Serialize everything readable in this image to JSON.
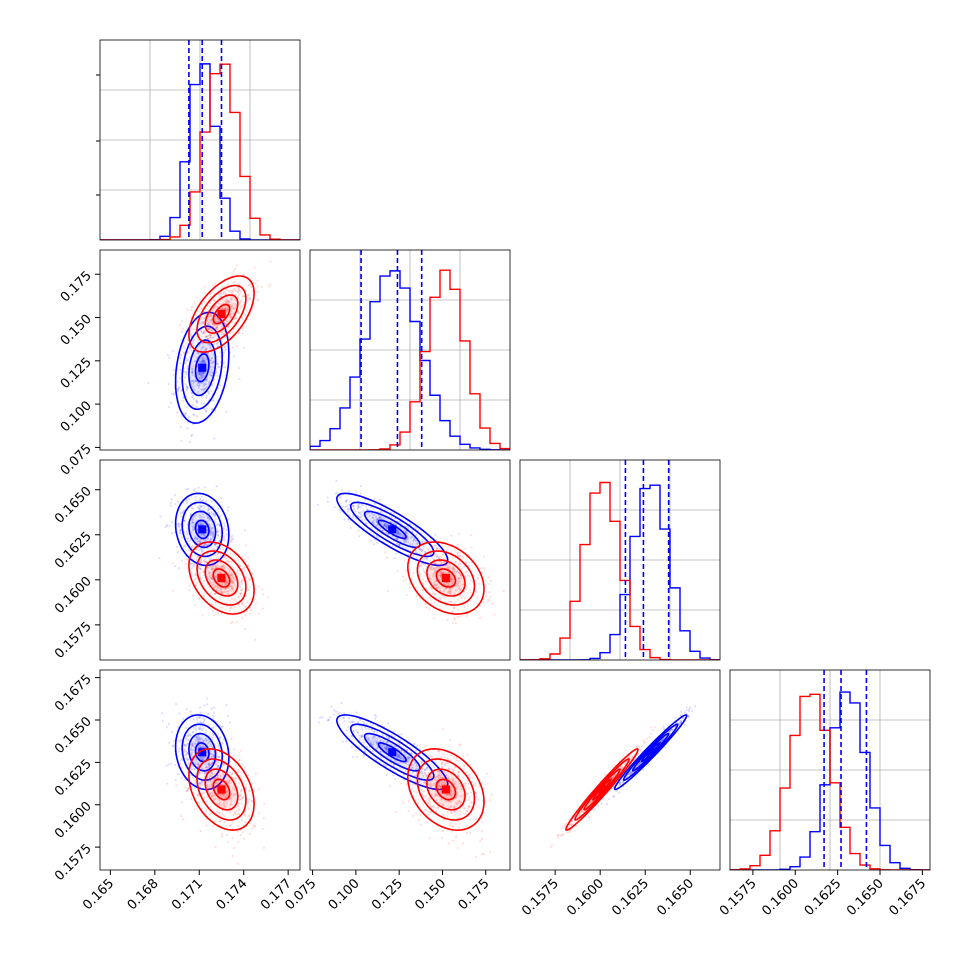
{
  "chart_data": {
    "type": "corner",
    "parameters": 4,
    "colors": {
      "series_a": "#0000ff",
      "series_b": "#ff0000",
      "grid": "#b0b0b0"
    },
    "series": [
      {
        "color": "#0000ff",
        "means": [
          0.1712,
          0.121,
          0.1628,
          0.1631
        ],
        "sds": [
          0.0009,
          0.016,
          0.001,
          0.0011
        ],
        "quantile_lines": [
          [
            0.1703,
            0.1712,
            0.1725
          ],
          [
            0.103,
            0.124,
            0.138
          ],
          [
            0.1614,
            0.1624,
            0.1638
          ],
          [
            0.1617,
            0.1627,
            0.1642
          ]
        ]
      },
      {
        "color": "#ff0000",
        "means": [
          0.1725,
          0.152,
          0.1601,
          0.1609
        ],
        "sds": [
          0.0011,
          0.011,
          0.001,
          0.0012
        ]
      }
    ],
    "correlations": [
      {
        "pair": [
          0,
          1
        ],
        "series_a": 0.25,
        "series_b": 0.55
      },
      {
        "pair": [
          0,
          2
        ],
        "series_a": -0.15,
        "series_b": -0.35
      },
      {
        "pair": [
          0,
          3
        ],
        "series_a": -0.15,
        "series_b": -0.35
      },
      {
        "pair": [
          1,
          2
        ],
        "series_a": -0.85,
        "series_b": -0.3
      },
      {
        "pair": [
          1,
          3
        ],
        "series_a": -0.85,
        "series_b": -0.3
      },
      {
        "pair": [
          2,
          3
        ],
        "series_a": 0.98,
        "series_b": 0.98
      }
    ],
    "axes": [
      {
        "range": [
          0.1643,
          0.1778
        ],
        "ticks": [
          0.165,
          0.168,
          0.171,
          0.174,
          0.177
        ],
        "tick_labels": [
          "0.165",
          "0.168",
          "0.171",
          "0.174",
          "0.177"
        ]
      },
      {
        "range": [
          0.0735,
          0.189
        ],
        "ticks": [
          0.075,
          0.1,
          0.125,
          0.15,
          0.175
        ],
        "tick_labels": [
          "0.075",
          "0.100",
          "0.125",
          "0.150",
          "0.175"
        ]
      },
      {
        "range": [
          0.15555,
          0.16665
        ],
        "ticks": [
          0.1575,
          0.16,
          0.1625,
          0.165
        ],
        "tick_labels": [
          "0.1575",
          "0.1600",
          "0.1625",
          "0.1650"
        ]
      },
      {
        "range": [
          0.15615,
          0.16795
        ],
        "ticks": [
          0.1575,
          0.16,
          0.1625,
          0.165,
          0.1675
        ],
        "tick_labels": [
          "0.1575",
          "0.1600",
          "0.1625",
          "0.1650",
          "0.1675"
        ]
      }
    ],
    "grid": true,
    "legend": "none"
  }
}
